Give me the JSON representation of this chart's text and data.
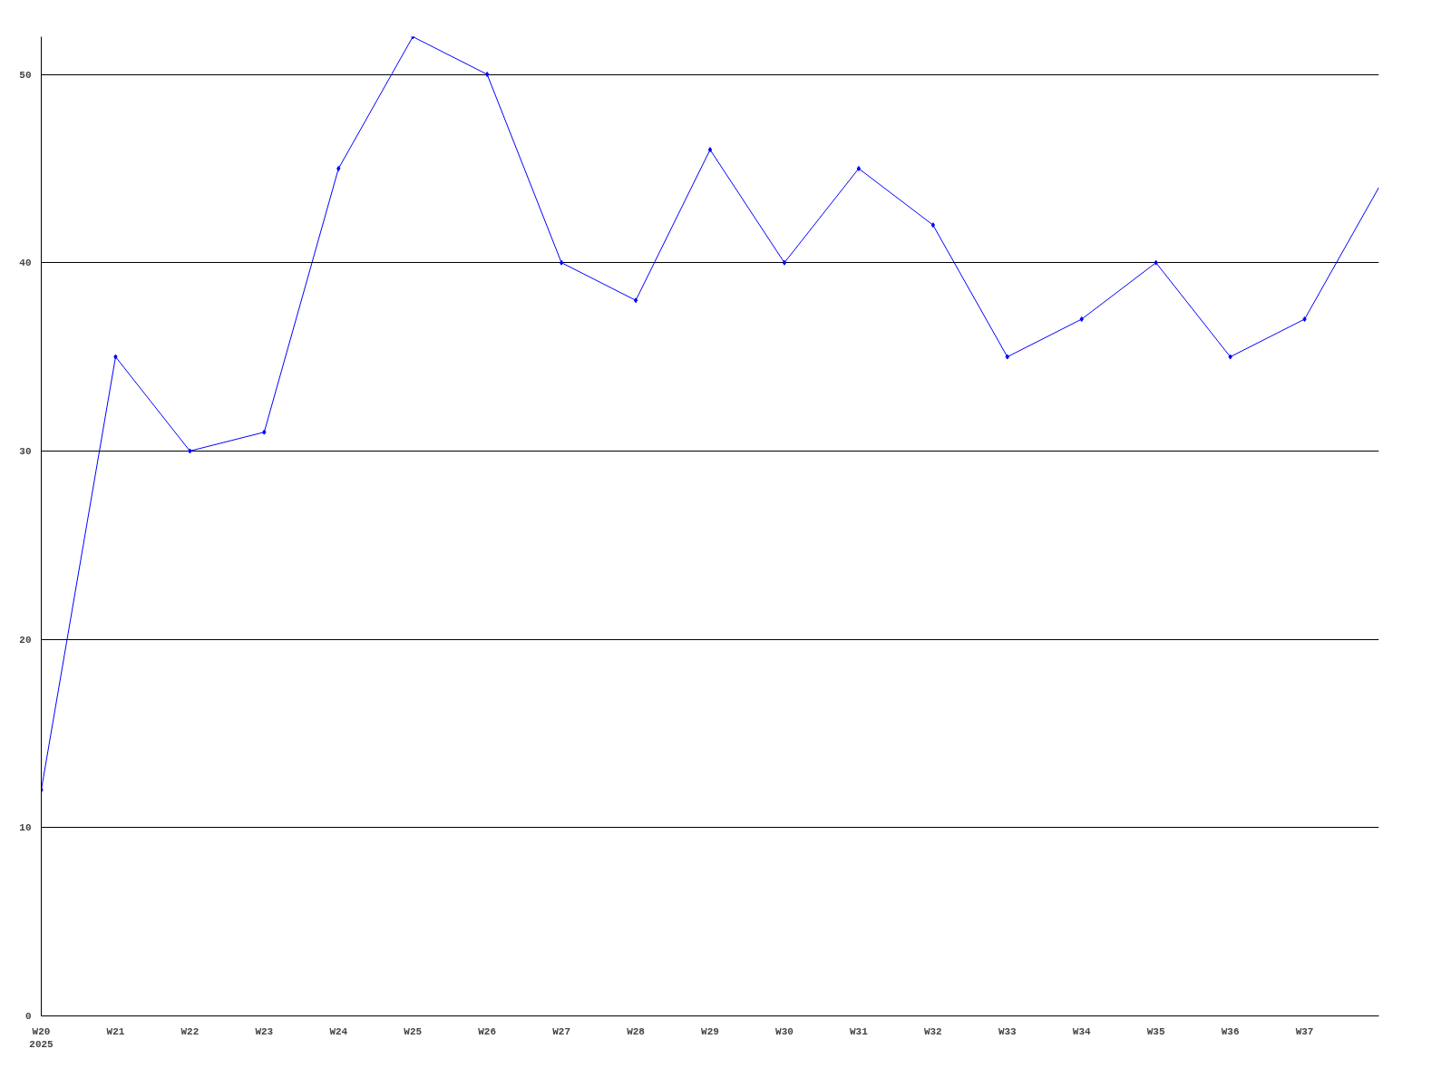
{
  "chart_data": {
    "type": "line",
    "categories": [
      "W20",
      "W21",
      "W22",
      "W23",
      "W24",
      "W25",
      "W26",
      "W27",
      "W28",
      "W29",
      "W30",
      "W31",
      "W32",
      "W33",
      "W34",
      "W35",
      "W36",
      "W37",
      null
    ],
    "series": [
      {
        "color": "#0000ff",
        "values": [
          12,
          35,
          30,
          31,
          45,
          52,
          50,
          40,
          38,
          46,
          40,
          45,
          42,
          35,
          37,
          40,
          35,
          37,
          44
        ]
      }
    ],
    "ylim": [
      0,
      52
    ],
    "yticks": [
      0,
      10,
      20,
      30,
      40,
      50
    ],
    "grid": "y",
    "marker": "diamond",
    "line_style": "solid",
    "annotations": [
      "2025"
    ]
  }
}
